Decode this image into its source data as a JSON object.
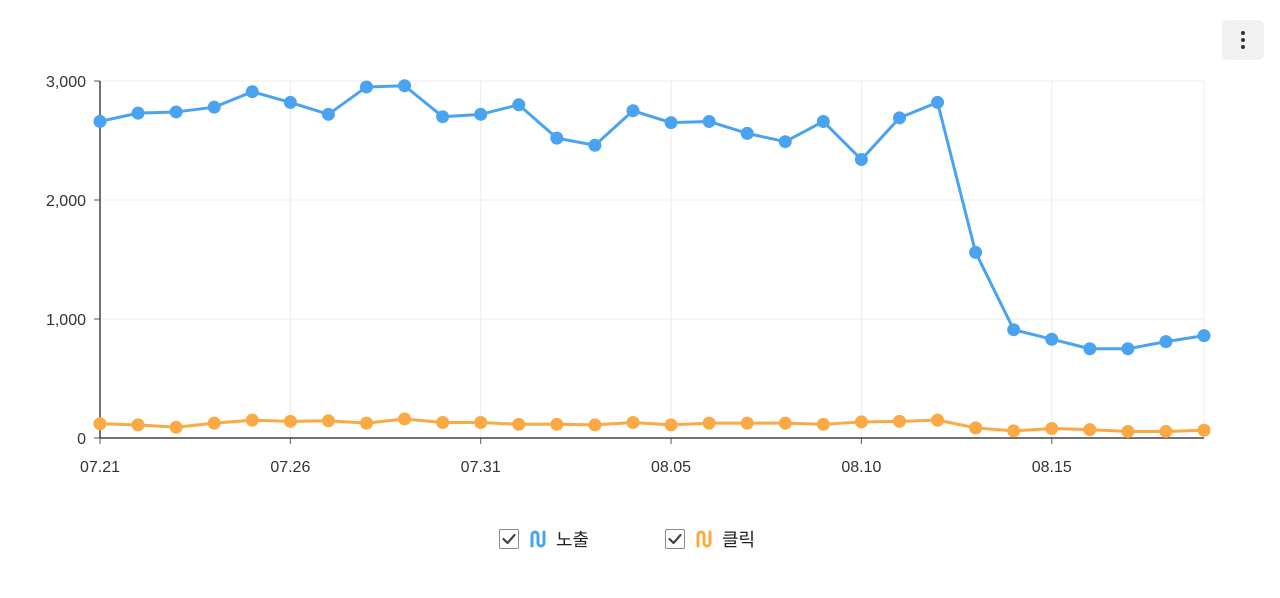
{
  "menu": {
    "icon": "more-vertical-icon"
  },
  "legend": {
    "items": [
      {
        "label": "노출",
        "checked": true,
        "color": "#4aa3f0",
        "icon": "series-line-icon"
      },
      {
        "label": "클릭",
        "checked": true,
        "color": "#fba944",
        "icon": "series-line-icon"
      }
    ]
  },
  "chart_data": {
    "type": "line",
    "grid": true,
    "legend_position": "bottom-center",
    "x": [
      "07.21",
      "07.22",
      "07.23",
      "07.24",
      "07.25",
      "07.26",
      "07.27",
      "07.28",
      "07.29",
      "07.30",
      "07.31",
      "08.01",
      "08.02",
      "08.03",
      "08.04",
      "08.05",
      "08.06",
      "08.07",
      "08.08",
      "08.09",
      "08.10",
      "08.11",
      "08.12",
      "08.13",
      "08.14",
      "08.15",
      "08.16",
      "08.17",
      "08.18",
      "08.19"
    ],
    "x_tick_labels": [
      "07.21",
      "07.26",
      "07.31",
      "08.05",
      "08.10",
      "08.15"
    ],
    "ylim": [
      0,
      3000
    ],
    "y_tick_labels": [
      "0",
      "1,000",
      "2,000",
      "3,000"
    ],
    "y_ticks": [
      0,
      1000,
      2000,
      3000
    ],
    "series": [
      {
        "name": "노출",
        "color": "#4aa3f0",
        "values": [
          2660,
          2730,
          2740,
          2780,
          2910,
          2820,
          2720,
          2950,
          2960,
          2700,
          2720,
          2800,
          2520,
          2460,
          2750,
          2650,
          2660,
          2560,
          2490,
          2660,
          2340,
          2690,
          2820,
          1560,
          910,
          830,
          750,
          750,
          810,
          860
        ]
      },
      {
        "name": "클릭",
        "color": "#fba944",
        "values": [
          120,
          110,
          90,
          125,
          150,
          140,
          145,
          125,
          160,
          130,
          130,
          115,
          115,
          110,
          130,
          110,
          125,
          125,
          125,
          115,
          135,
          140,
          150,
          85,
          60,
          80,
          70,
          55,
          55,
          65
        ]
      }
    ]
  }
}
